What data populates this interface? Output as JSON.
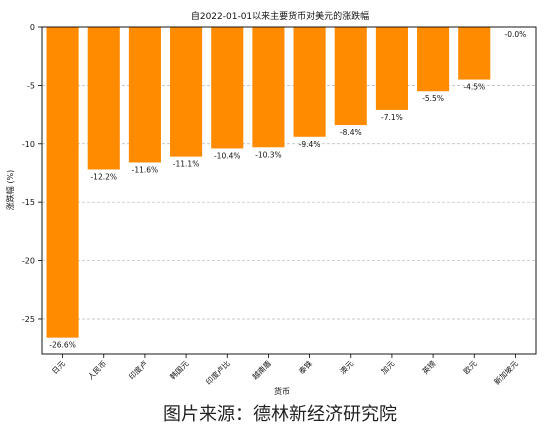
{
  "chart_data": {
    "type": "bar",
    "title": "自2022-01-01以来主要货币对美元的涨跌幅",
    "xlabel": "货币",
    "ylabel": "涨跌幅 (%)",
    "categories": [
      "日元",
      "人民币",
      "印度卢",
      "韩国元",
      "印度卢比",
      "越南盾",
      "泰铢",
      "澳元",
      "加元",
      "英镑",
      "欧元",
      "新加坡元"
    ],
    "values": [
      -26.6,
      -12.2,
      -11.6,
      -11.1,
      -10.4,
      -10.3,
      -9.4,
      -8.4,
      -7.1,
      -5.5,
      -4.5,
      -0.0
    ],
    "data_labels": [
      "-26.6%",
      "-12.2%",
      "-11.6%",
      "-11.1%",
      "-10.4%",
      "-10.3%",
      "-9.4%",
      "-8.4%",
      "-7.1%",
      "-5.5%",
      "-4.5%",
      "-0.0%"
    ],
    "yticks": [
      0,
      -5,
      -10,
      -15,
      -20,
      -25
    ],
    "ytick_labels": [
      "0",
      "-5",
      "-10",
      "-15",
      "-20",
      "-25"
    ],
    "ylim": [
      -28,
      0
    ],
    "grid": "horizontal-dashed",
    "bar_color": "#FF8C00"
  },
  "source_text": "图片来源：德林新经济研究院"
}
